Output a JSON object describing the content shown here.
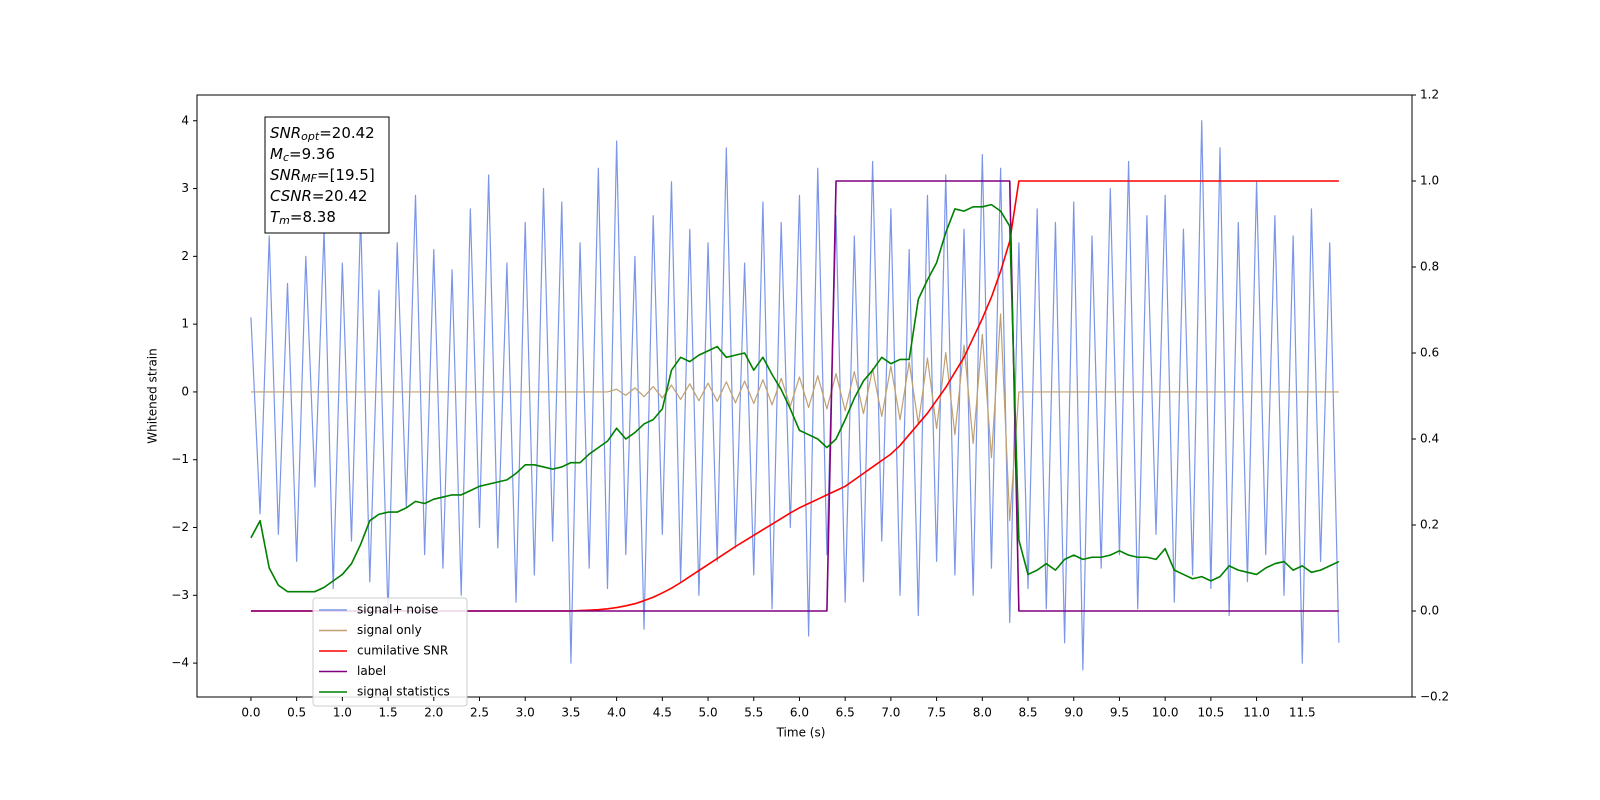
{
  "chart_data": {
    "type": "line",
    "xlabel": "Time (s)",
    "ylabel": "Whitened strain",
    "annotation": [
      {
        "base": "SNR",
        "sub": "opt",
        "text": "=20.42"
      },
      {
        "base": "M",
        "sub": "c",
        "text": "=9.36"
      },
      {
        "base": "SNR",
        "sub": "MF",
        "text": "=[19.5]"
      },
      {
        "base": "CSNR",
        "sub": "",
        "text": "=20.42"
      },
      {
        "base": "T",
        "sub": "m",
        "text": "=8.38"
      }
    ],
    "xlim": [
      -0.59,
      12.7
    ],
    "ylim": [
      -4.5,
      4.38
    ],
    "y2lim": [
      -0.2,
      1.2
    ],
    "grid": false,
    "legend": "lower left",
    "xticks": [
      {
        "value": 0,
        "label": "0.0"
      },
      0.5,
      {
        "value": 1,
        "label": "1.0"
      },
      1.5,
      {
        "value": 2,
        "label": "2.0"
      },
      2.5,
      {
        "value": 3,
        "label": "3.0"
      },
      3.5,
      {
        "value": 4,
        "label": "4.0"
      },
      4.5,
      {
        "value": 5,
        "label": "5.0"
      },
      5.5,
      {
        "value": 6,
        "label": "6.0"
      },
      6.5,
      {
        "value": 7,
        "label": "7.0"
      },
      7.5,
      {
        "value": 8,
        "label": "8.0"
      },
      8.5,
      {
        "value": 9,
        "label": "9.0"
      },
      9.5,
      {
        "value": 10,
        "label": "10.0"
      },
      10.5,
      {
        "value": 11,
        "label": "11.0"
      },
      11.5
    ],
    "yticks": [
      {
        "value": -4,
        "label": "−4"
      },
      {
        "value": -3,
        "label": "−3"
      },
      {
        "value": -2,
        "label": "−2"
      },
      {
        "value": -1,
        "label": "−1"
      },
      0,
      1,
      2,
      3,
      4
    ],
    "y2ticks": [
      {
        "value": -0.2,
        "label": "−0.2"
      },
      {
        "value": 0,
        "label": "0.0"
      },
      0.2,
      0.4,
      0.6,
      0.8,
      {
        "value": 1,
        "label": "1.0"
      },
      1.2
    ],
    "x": [
      0.0,
      0.1,
      0.2,
      0.3,
      0.4,
      0.5,
      0.6,
      0.7,
      0.8,
      0.9,
      1.0,
      1.1,
      1.2,
      1.3,
      1.4,
      1.5,
      1.6,
      1.7,
      1.8,
      1.9,
      2.0,
      2.1,
      2.2,
      2.3,
      2.4,
      2.5,
      2.6,
      2.7,
      2.8,
      2.9,
      3.0,
      3.1,
      3.2,
      3.3,
      3.4,
      3.5,
      3.6,
      3.7,
      3.8,
      3.9,
      4.0,
      4.1,
      4.2,
      4.3,
      4.4,
      4.5,
      4.6,
      4.7,
      4.8,
      4.9,
      5.0,
      5.1,
      5.2,
      5.3,
      5.4,
      5.5,
      5.6,
      5.7,
      5.8,
      5.9,
      6.0,
      6.1,
      6.2,
      6.3,
      6.4,
      6.5,
      6.6,
      6.7,
      6.8,
      6.9,
      7.0,
      7.1,
      7.2,
      7.3,
      7.4,
      7.5,
      7.6,
      7.7,
      7.8,
      7.9,
      8.0,
      8.1,
      8.2,
      8.3,
      8.4,
      8.5,
      8.6,
      8.7,
      8.8,
      8.9,
      9.0,
      9.1,
      9.2,
      9.3,
      9.4,
      9.5,
      9.6,
      9.7,
      9.8,
      9.9,
      10.0,
      10.1,
      10.2,
      10.3,
      10.4,
      10.5,
      10.6,
      10.7,
      10.8,
      10.9,
      11.0,
      11.1,
      11.2,
      11.3,
      11.4,
      11.5,
      11.6,
      11.7,
      11.8,
      11.9
    ],
    "series": [
      {
        "name": "signal+ noise",
        "color": "#7b96e8",
        "axis": "y",
        "values": [
          1.1,
          -1.8,
          2.3,
          -2.1,
          1.6,
          -2.5,
          2.0,
          -1.4,
          2.4,
          -2.9,
          1.9,
          -2.2,
          2.6,
          -2.8,
          1.5,
          -3.3,
          2.2,
          -1.7,
          2.9,
          -2.4,
          2.1,
          -2.6,
          1.8,
          -3.0,
          2.7,
          -2.0,
          3.2,
          -2.3,
          1.9,
          -3.1,
          2.5,
          -2.7,
          3.0,
          -2.2,
          2.8,
          -4.0,
          2.2,
          -2.6,
          3.3,
          -2.9,
          3.7,
          -2.4,
          2.0,
          -3.5,
          2.6,
          -2.1,
          3.1,
          -2.8,
          2.4,
          -3.0,
          2.2,
          -2.5,
          3.6,
          -2.3,
          1.9,
          -2.7,
          2.8,
          -3.2,
          2.5,
          -2.0,
          2.9,
          -3.6,
          3.3,
          -2.4,
          2.6,
          -3.1,
          2.3,
          -2.8,
          3.4,
          -2.2,
          2.7,
          -3.0,
          2.1,
          -3.3,
          2.9,
          -2.5,
          3.2,
          -2.7,
          2.4,
          -3.0,
          3.5,
          -2.6,
          3.3,
          -3.4,
          2.2,
          -2.9,
          2.7,
          -3.2,
          2.5,
          -3.7,
          2.8,
          -4.1,
          2.3,
          -2.6,
          3.0,
          -2.4,
          3.4,
          -3.2,
          2.6,
          -2.1,
          2.9,
          -3.1,
          2.4,
          -2.7,
          4.0,
          -2.9,
          3.6,
          -3.3,
          2.5,
          -2.8,
          3.1,
          -2.4,
          2.6,
          -3.0,
          2.3,
          -4.0,
          2.7,
          -2.5,
          2.2,
          -3.7
        ]
      },
      {
        "name": "signal only",
        "color": "#bfa070",
        "axis": "y",
        "values": [
          0,
          0,
          0,
          0,
          0,
          0,
          0,
          0,
          0,
          0,
          0,
          0,
          0,
          0,
          0,
          0,
          0,
          0,
          0,
          0,
          0,
          0,
          0,
          0,
          0,
          0,
          0,
          0,
          0,
          0,
          0,
          0,
          0,
          0,
          0,
          0,
          0,
          0,
          0,
          0,
          0.04,
          -0.05,
          0.06,
          -0.07,
          0.08,
          -0.09,
          0.1,
          -0.11,
          0.12,
          -0.13,
          0.13,
          -0.14,
          0.15,
          -0.16,
          0.16,
          -0.17,
          0.18,
          -0.19,
          0.2,
          -0.21,
          0.22,
          -0.23,
          0.24,
          -0.25,
          0.27,
          -0.28,
          0.3,
          -0.32,
          0.34,
          -0.36,
          0.38,
          -0.41,
          0.44,
          -0.47,
          0.5,
          -0.54,
          0.58,
          -0.63,
          0.69,
          -0.76,
          0.85,
          -0.97,
          1.15,
          -1.9,
          0,
          0,
          0,
          0,
          0,
          0,
          0,
          0,
          0,
          0,
          0,
          0,
          0,
          0,
          0,
          0,
          0,
          0,
          0,
          0,
          0,
          0,
          0,
          0,
          0,
          0,
          0,
          0,
          0,
          0,
          0,
          0,
          0,
          0,
          0,
          0
        ]
      },
      {
        "name": "cumilative SNR",
        "color": "red",
        "axis": "y2",
        "values": [
          0,
          0,
          0,
          0,
          0,
          0,
          0,
          0,
          0,
          0,
          0,
          0,
          0,
          0,
          0,
          0,
          0,
          0,
          0,
          0,
          0,
          0,
          0,
          0,
          0,
          0,
          0,
          0,
          0,
          0,
          0,
          0,
          0,
          0,
          0,
          0,
          0.001,
          0.002,
          0.003,
          0.005,
          0.008,
          0.012,
          0.017,
          0.024,
          0.032,
          0.042,
          0.053,
          0.066,
          0.08,
          0.094,
          0.108,
          0.122,
          0.136,
          0.15,
          0.163,
          0.176,
          0.189,
          0.202,
          0.215,
          0.228,
          0.24,
          0.25,
          0.26,
          0.27,
          0.28,
          0.29,
          0.305,
          0.32,
          0.335,
          0.35,
          0.365,
          0.385,
          0.41,
          0.435,
          0.46,
          0.49,
          0.52,
          0.555,
          0.59,
          0.635,
          0.68,
          0.73,
          0.79,
          0.86,
          1,
          1,
          1,
          1,
          1,
          1,
          1,
          1,
          1,
          1,
          1,
          1,
          1,
          1,
          1,
          1,
          1,
          1,
          1,
          1,
          1,
          1,
          1,
          1,
          1,
          1,
          1,
          1,
          1,
          1,
          1,
          1,
          1,
          1,
          1,
          1
        ]
      },
      {
        "name": "label",
        "color": "purple",
        "axis": "y2",
        "values": [
          0,
          0,
          0,
          0,
          0,
          0,
          0,
          0,
          0,
          0,
          0,
          0,
          0,
          0,
          0,
          0,
          0,
          0,
          0,
          0,
          0,
          0,
          0,
          0,
          0,
          0,
          0,
          0,
          0,
          0,
          0,
          0,
          0,
          0,
          0,
          0,
          0,
          0,
          0,
          0,
          0,
          0,
          0,
          0,
          0,
          0,
          0,
          0,
          0,
          0,
          0,
          0,
          0,
          0,
          0,
          0,
          0,
          0,
          0,
          0,
          0,
          0,
          0,
          0,
          1,
          1,
          1,
          1,
          1,
          1,
          1,
          1,
          1,
          1,
          1,
          1,
          1,
          1,
          1,
          1,
          1,
          1,
          1,
          1,
          0,
          0,
          0,
          0,
          0,
          0,
          0,
          0,
          0,
          0,
          0,
          0,
          0,
          0,
          0,
          0,
          0,
          0,
          0,
          0,
          0,
          0,
          0,
          0,
          0,
          0,
          0,
          0,
          0,
          0,
          0,
          0,
          0,
          0,
          0,
          0
        ]
      },
      {
        "name": "signal statistics",
        "color": "green",
        "axis": "y2",
        "values": [
          0.17,
          0.21,
          0.1,
          0.06,
          0.045,
          0.045,
          0.045,
          0.045,
          0.055,
          0.07,
          0.085,
          0.11,
          0.155,
          0.21,
          0.225,
          0.23,
          0.23,
          0.24,
          0.255,
          0.25,
          0.26,
          0.265,
          0.27,
          0.27,
          0.28,
          0.29,
          0.295,
          0.3,
          0.305,
          0.32,
          0.34,
          0.34,
          0.335,
          0.33,
          0.335,
          0.345,
          0.345,
          0.365,
          0.38,
          0.395,
          0.425,
          0.4,
          0.415,
          0.435,
          0.445,
          0.47,
          0.56,
          0.59,
          0.58,
          0.595,
          0.605,
          0.615,
          0.59,
          0.595,
          0.6,
          0.56,
          0.59,
          0.55,
          0.515,
          0.47,
          0.42,
          0.41,
          0.4,
          0.38,
          0.4,
          0.445,
          0.495,
          0.535,
          0.56,
          0.59,
          0.575,
          0.585,
          0.585,
          0.725,
          0.77,
          0.81,
          0.88,
          0.935,
          0.93,
          0.94,
          0.94,
          0.945,
          0.93,
          0.895,
          0.165,
          0.085,
          0.095,
          0.11,
          0.095,
          0.12,
          0.13,
          0.12,
          0.125,
          0.125,
          0.13,
          0.14,
          0.13,
          0.125,
          0.125,
          0.12,
          0.145,
          0.095,
          0.085,
          0.075,
          0.08,
          0.07,
          0.08,
          0.105,
          0.095,
          0.09,
          0.085,
          0.1,
          0.11,
          0.115,
          0.095,
          0.105,
          0.09,
          0.095,
          0.105,
          0.115
        ]
      }
    ]
  }
}
